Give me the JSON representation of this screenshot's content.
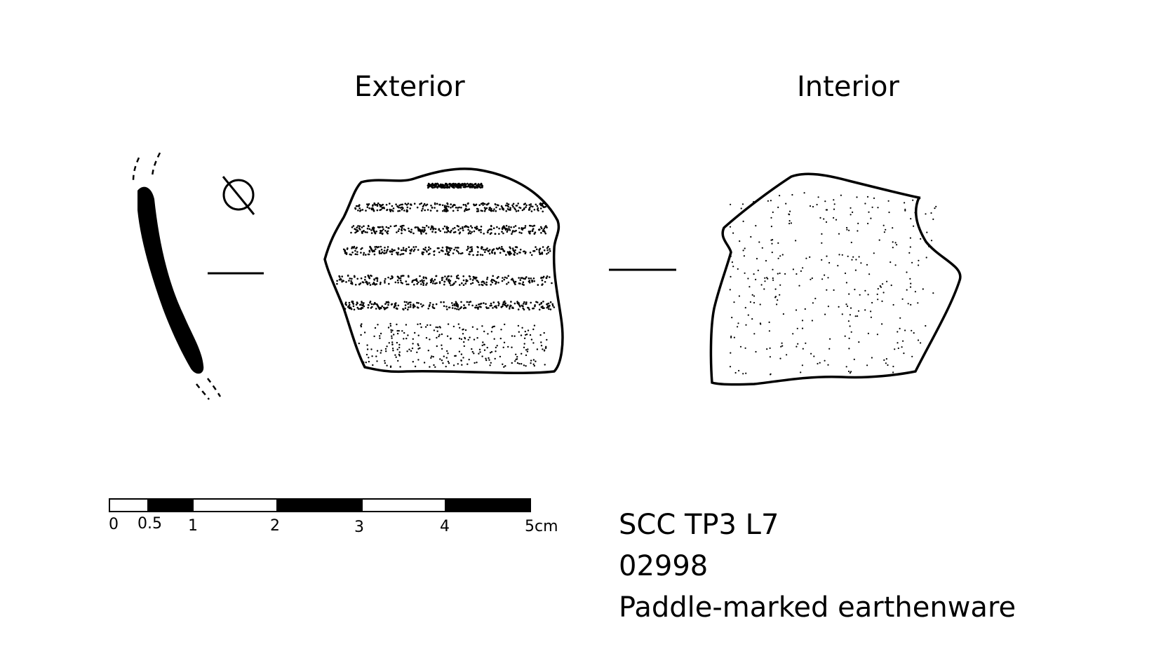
{
  "headings": {
    "exterior": "Exterior",
    "interior": "Interior"
  },
  "symbols": {
    "diameter": "Ø"
  },
  "scale_bar": {
    "ticks": [
      "0",
      "0.5",
      "1",
      "2",
      "3",
      "4",
      "5cm"
    ]
  },
  "label": {
    "site": "SCC TP3 L7",
    "number": "02998",
    "description": "Paddle-marked earthenware"
  },
  "colors": {
    "ink": "#000000",
    "paper": "#ffffff"
  }
}
